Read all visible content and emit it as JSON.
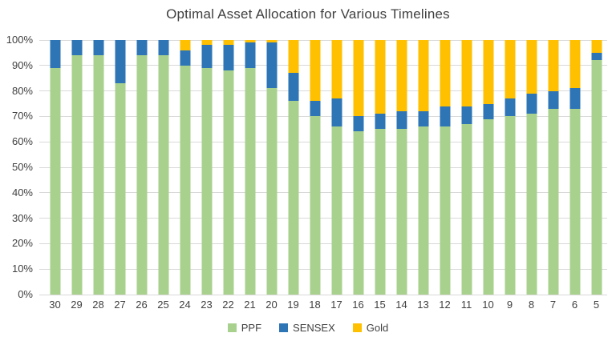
{
  "chart_data": {
    "type": "bar",
    "stacked": true,
    "title": "Optimal Asset Allocation for Various Timelines",
    "categories": [
      "30",
      "29",
      "28",
      "27",
      "26",
      "25",
      "24",
      "23",
      "22",
      "21",
      "20",
      "19",
      "18",
      "17",
      "16",
      "15",
      "14",
      "13",
      "12",
      "11",
      "10",
      "9",
      "8",
      "7",
      "6",
      "5"
    ],
    "series": [
      {
        "name": "PPF",
        "color": "#A9D18E",
        "values": [
          89,
          94,
          94,
          83,
          94,
          94,
          90,
          89,
          88,
          89,
          81,
          76,
          70,
          66,
          64,
          65,
          65,
          66,
          66,
          67,
          69,
          70,
          71,
          73,
          73,
          92
        ]
      },
      {
        "name": "SENSEX",
        "color": "#2E75B6",
        "values": [
          11,
          6,
          6,
          17,
          6,
          6,
          6,
          9,
          10,
          10,
          18,
          11,
          6,
          11,
          6,
          6,
          7,
          6,
          8,
          7,
          6,
          7,
          8,
          7,
          8,
          3
        ]
      },
      {
        "name": "Gold",
        "color": "#FFC000",
        "values": [
          0,
          0,
          0,
          0,
          0,
          0,
          4,
          2,
          2,
          1,
          1,
          13,
          24,
          23,
          30,
          29,
          28,
          28,
          26,
          26,
          25,
          23,
          21,
          20,
          19,
          5
        ]
      }
    ],
    "y_ticks": [
      "0%",
      "10%",
      "20%",
      "30%",
      "40%",
      "50%",
      "60%",
      "70%",
      "80%",
      "90%",
      "100%"
    ],
    "ylim": [
      0,
      100
    ],
    "xlabel": "",
    "ylabel": "",
    "grid": true,
    "legend_position": "bottom",
    "gridline_color": "#D9D9D9",
    "text_color": "#404040"
  }
}
